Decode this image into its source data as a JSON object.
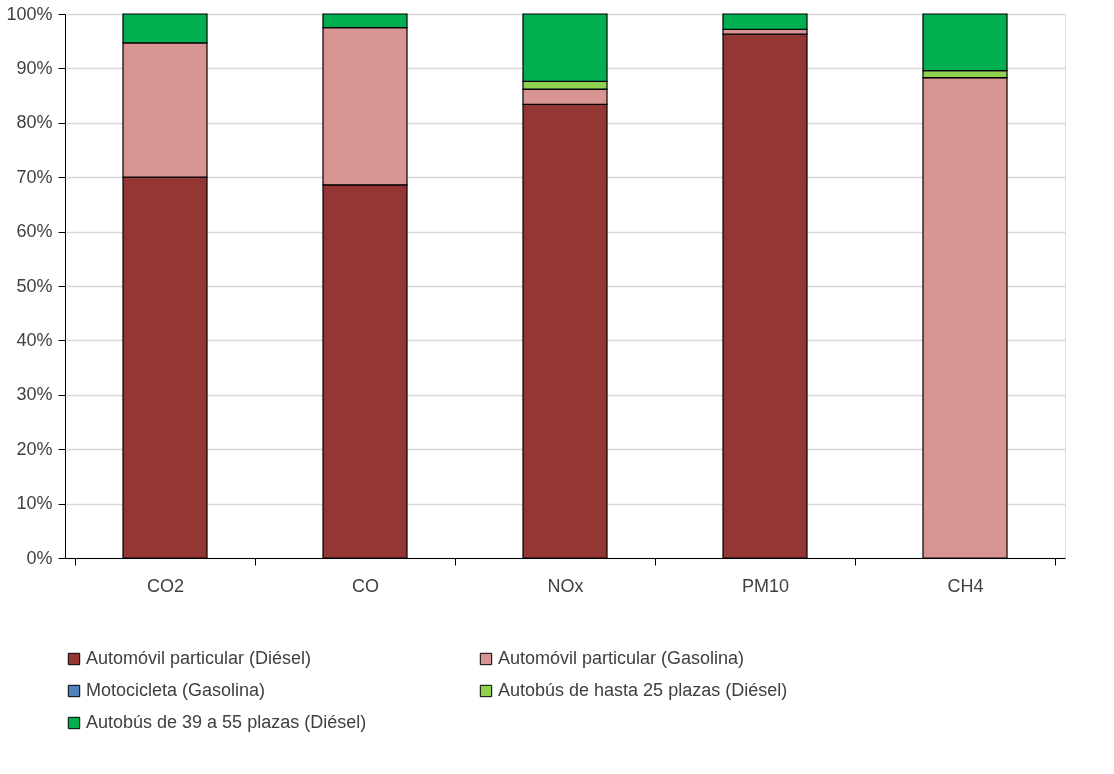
{
  "chart_data": {
    "type": "bar",
    "stacked": true,
    "categories": [
      "CO2",
      "CO",
      "NOx",
      "PM10",
      "CH4"
    ],
    "series": [
      {
        "name": "Automóvil particular (Diésel)",
        "color": "#943634",
        "values": [
          70,
          68.6,
          83.4,
          96.3,
          0
        ]
      },
      {
        "name": "Automóvil particular (Gasolina)",
        "color": "#d99594",
        "values": [
          24.7,
          28.9,
          2.8,
          0.9,
          88.3
        ]
      },
      {
        "name": "Motocicleta (Gasolina)",
        "color": "#4f81bd",
        "values": [
          null,
          null,
          0,
          0,
          0
        ]
      },
      {
        "name": "Autobús de hasta 25 plazas (Diésel)",
        "color": "#92d050",
        "values": [
          null,
          null,
          1.4,
          null,
          1.3
        ]
      },
      {
        "name": "Autobús de 39 a 55 plazas (Diésel)",
        "color": "#00b050",
        "values": [
          5.3,
          2.5,
          12.4,
          2.8,
          10.4
        ]
      }
    ],
    "ylim": [
      0,
      100
    ],
    "yticks": [
      {
        "value": 0,
        "label": "0%"
      },
      {
        "value": 10,
        "label": "10%"
      },
      {
        "value": 20,
        "label": "20%"
      },
      {
        "value": 30,
        "label": "30%"
      },
      {
        "value": 40,
        "label": "40%"
      },
      {
        "value": 50,
        "label": "50%"
      },
      {
        "value": 60,
        "label": "60%"
      },
      {
        "value": 70,
        "label": "70%"
      },
      {
        "value": 80,
        "label": "80%"
      },
      {
        "value": 90,
        "label": "90%"
      },
      {
        "value": 100,
        "label": "100%"
      }
    ],
    "grid": "y",
    "legend": "bottom"
  }
}
